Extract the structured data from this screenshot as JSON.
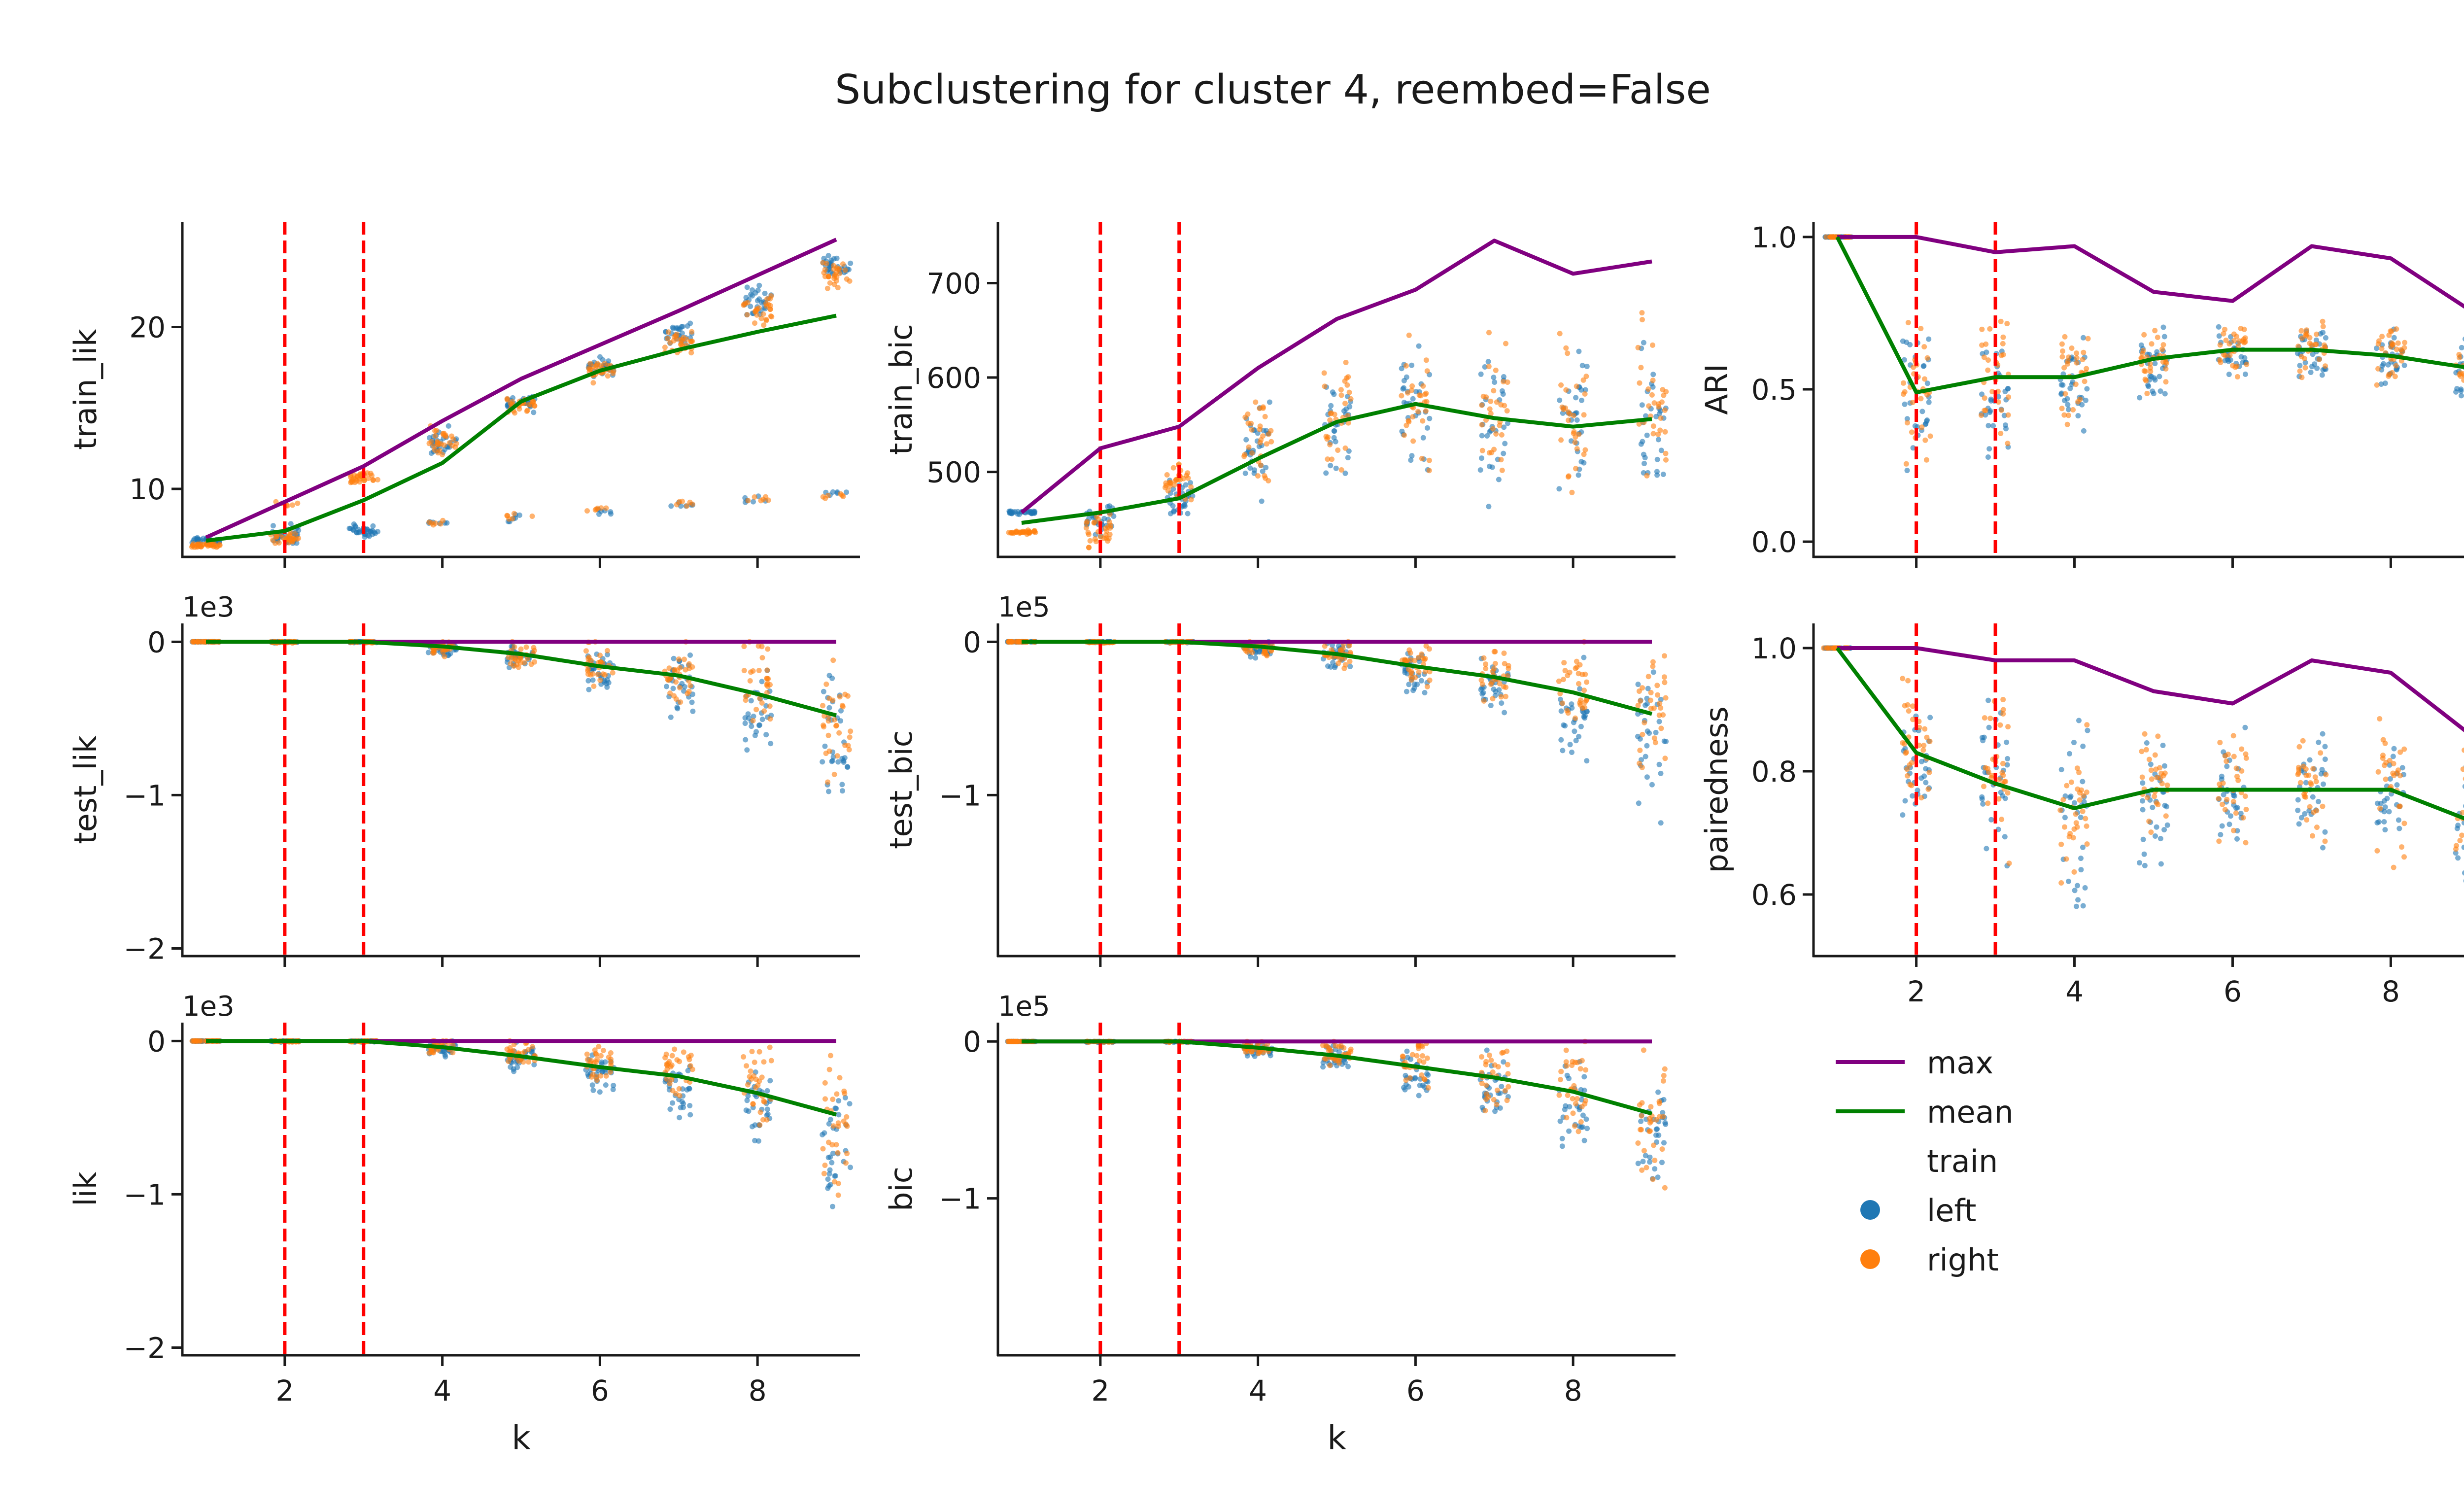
{
  "figure": {
    "title": "Subclustering for cluster 4, reembed=False",
    "colors": {
      "max": "#800080",
      "mean": "#008000",
      "left": "#1f77b4",
      "right": "#ff7f0e",
      "vline": "#ff0000"
    },
    "legend": {
      "entries": [
        "max",
        "mean"
      ],
      "subtitle": "train",
      "markers": [
        "left",
        "right"
      ]
    }
  },
  "chart_data": [
    {
      "id": "train_lik",
      "type": "scatter",
      "ylabel": "train_lik",
      "xlabel": "",
      "xlim": [
        0.7,
        9.3
      ],
      "ylim": [
        5.8,
        26.5
      ],
      "yticks": [
        10,
        20
      ],
      "ytick_labels": [
        "10",
        "20"
      ],
      "xticks": [
        2,
        4,
        6,
        8
      ],
      "xtick_labels": [
        "",
        "",
        "",
        ""
      ],
      "offset": "",
      "vlines": [
        2,
        3
      ],
      "x": [
        1,
        2,
        3,
        4,
        5,
        6,
        7,
        8,
        9
      ],
      "series": [
        {
          "name": "max",
          "values": [
            7.0,
            9.2,
            11.4,
            14.2,
            16.8,
            18.9,
            21.0,
            23.2,
            25.4
          ]
        },
        {
          "name": "mean",
          "values": [
            6.8,
            7.4,
            9.3,
            11.6,
            15.4,
            17.3,
            18.6,
            19.7,
            20.7
          ]
        }
      ],
      "scatter": {
        "left_main": [
          6.8,
          7.0,
          7.4,
          13.0,
          15.4,
          17.6,
          19.5,
          21.6,
          23.8
        ],
        "left_low": [
          6.9,
          7.6,
          7.5,
          7.9,
          8.2,
          8.6,
          9.0,
          9.3,
          9.8
        ],
        "right_main": [
          6.5,
          7.0,
          10.6,
          13.0,
          15.2,
          17.3,
          19.0,
          21.0,
          23.2
        ],
        "right_low": [
          6.6,
          9.1,
          10.9,
          7.9,
          8.3,
          8.7,
          9.1,
          9.4,
          9.6
        ],
        "spread_main": [
          0.2,
          0.6,
          0.5,
          1.2,
          0.8,
          0.9,
          1.0,
          1.3,
          1.2
        ],
        "spread_low": [
          0.15,
          0.3,
          0.15,
          0.2,
          0.3,
          0.3,
          0.3,
          0.3,
          0.3
        ]
      }
    },
    {
      "id": "train_bic",
      "type": "scatter",
      "ylabel": "train_bic",
      "xlabel": "",
      "xlim": [
        0.7,
        9.3
      ],
      "ylim": [
        410,
        765
      ],
      "yticks": [
        500,
        600,
        700
      ],
      "ytick_labels": [
        "500",
        "600",
        "700"
      ],
      "xticks": [
        2,
        4,
        6,
        8
      ],
      "xtick_labels": [
        "",
        "",
        "",
        ""
      ],
      "offset": "",
      "vlines": [
        2,
        3
      ],
      "x": [
        1,
        2,
        3,
        4,
        5,
        6,
        7,
        8,
        9
      ],
      "series": [
        {
          "name": "max",
          "values": [
            457,
            525,
            548,
            610,
            662,
            693,
            745,
            710,
            723
          ]
        },
        {
          "name": "mean",
          "values": [
            446,
            457,
            472,
            514,
            553,
            572,
            557,
            548,
            556
          ]
        }
      ],
      "scatter": {
        "left_center": [
          457,
          452,
          470,
          520,
          550,
          570,
          550,
          545,
          555
        ],
        "right_center": [
          436,
          440,
          490,
          540,
          560,
          580,
          570,
          565,
          570
        ],
        "spread": [
          3,
          25,
          25,
          80,
          80,
          90,
          110,
          115,
          130
        ]
      }
    },
    {
      "id": "ARI",
      "type": "scatter",
      "ylabel": "ARI",
      "xlabel": "",
      "xlim": [
        0.7,
        9.3
      ],
      "ylim": [
        -0.05,
        1.05
      ],
      "yticks": [
        0.0,
        0.5,
        1.0
      ],
      "ytick_labels": [
        "0.0",
        "0.5",
        "1.0"
      ],
      "xticks": [
        2,
        4,
        6,
        8
      ],
      "xtick_labels": [
        "",
        "",
        "",
        ""
      ],
      "offset": "",
      "vlines": [
        2,
        3
      ],
      "x": [
        1,
        2,
        3,
        4,
        5,
        6,
        7,
        8,
        9
      ],
      "series": [
        {
          "name": "max",
          "values": [
            1.0,
            1.0,
            0.95,
            0.97,
            0.82,
            0.79,
            0.97,
            0.93,
            0.76
          ]
        },
        {
          "name": "mean",
          "values": [
            1.0,
            0.49,
            0.54,
            0.54,
            0.6,
            0.63,
            0.63,
            0.61,
            0.57
          ]
        }
      ],
      "scatter": {
        "left_center": [
          1.0,
          0.48,
          0.5,
          0.52,
          0.58,
          0.62,
          0.62,
          0.6,
          0.56
        ],
        "right_center": [
          1.0,
          0.5,
          0.56,
          0.56,
          0.6,
          0.64,
          0.64,
          0.62,
          0.58
        ],
        "spread": [
          0.0,
          0.35,
          0.3,
          0.22,
          0.15,
          0.12,
          0.14,
          0.13,
          0.12
        ]
      }
    },
    {
      "id": "test_lik",
      "type": "scatter",
      "ylabel": "test_lik",
      "xlabel": "",
      "xlim": [
        0.7,
        9.3
      ],
      "ylim": [
        -2.05,
        0.12
      ],
      "yticks": [
        -2,
        -1,
        0
      ],
      "ytick_labels": [
        "−2",
        "−1",
        "0"
      ],
      "xticks": [
        2,
        4,
        6,
        8
      ],
      "xtick_labels": [
        "",
        "",
        "",
        ""
      ],
      "offset": "1e3",
      "vlines": [
        2,
        3
      ],
      "x": [
        1,
        2,
        3,
        4,
        5,
        6,
        7,
        8,
        9
      ],
      "series": [
        {
          "name": "max",
          "values": [
            0.0,
            0.0,
            0.0,
            0.0,
            0.0,
            0.0,
            0.0,
            0.0,
            0.0
          ]
        },
        {
          "name": "mean",
          "values": [
            0.0,
            0.0,
            0.0,
            -0.03,
            -0.08,
            -0.16,
            -0.22,
            -0.34,
            -0.48
          ]
        }
      ],
      "scatter": {
        "left_center": [
          0.0,
          0.0,
          0.0,
          -0.05,
          -0.1,
          -0.2,
          -0.3,
          -0.45,
          -0.65
        ],
        "right_center": [
          0.0,
          0.0,
          0.0,
          -0.04,
          -0.08,
          -0.14,
          -0.22,
          -0.3,
          -0.5
        ],
        "spread": [
          0.0,
          0.01,
          0.01,
          0.07,
          0.12,
          0.2,
          0.28,
          0.4,
          0.6
        ]
      }
    },
    {
      "id": "test_bic",
      "type": "scatter",
      "ylabel": "test_bic",
      "xlabel": "",
      "xlim": [
        0.7,
        9.3
      ],
      "ylim": [
        -2.05,
        0.12
      ],
      "yticks": [
        -1,
        0
      ],
      "ytick_labels": [
        "−1",
        "0"
      ],
      "xticks": [
        2,
        4,
        6,
        8
      ],
      "xtick_labels": [
        "",
        "",
        "",
        ""
      ],
      "offset": "1e5",
      "vlines": [
        2,
        3
      ],
      "x": [
        1,
        2,
        3,
        4,
        5,
        6,
        7,
        8,
        9
      ],
      "series": [
        {
          "name": "max",
          "values": [
            0.0,
            0.0,
            0.0,
            0.0,
            0.0,
            0.0,
            0.0,
            0.0,
            0.0
          ]
        },
        {
          "name": "mean",
          "values": [
            0.0,
            0.0,
            0.0,
            -0.03,
            -0.08,
            -0.16,
            -0.23,
            -0.33,
            -0.47
          ]
        }
      ],
      "scatter": {
        "left_center": [
          0.0,
          0.0,
          0.0,
          -0.05,
          -0.1,
          -0.2,
          -0.3,
          -0.45,
          -0.65
        ],
        "right_center": [
          0.0,
          0.0,
          0.0,
          -0.04,
          -0.08,
          -0.14,
          -0.22,
          -0.3,
          -0.5
        ],
        "spread": [
          0.0,
          0.01,
          0.01,
          0.07,
          0.12,
          0.2,
          0.28,
          0.4,
          0.6
        ]
      }
    },
    {
      "id": "pairedness",
      "type": "scatter",
      "ylabel": "pairedness",
      "xlabel": "",
      "xlim": [
        0.7,
        9.3
      ],
      "ylim": [
        0.5,
        1.04
      ],
      "yticks": [
        0.6,
        0.8,
        1.0
      ],
      "ytick_labels": [
        "0.6",
        "0.8",
        "1.0"
      ],
      "xticks": [
        2,
        4,
        6,
        8
      ],
      "xtick_labels": [
        "2",
        "4",
        "6",
        "8"
      ],
      "offset": "",
      "vlines": [
        2,
        3
      ],
      "x": [
        1,
        2,
        3,
        4,
        5,
        6,
        7,
        8,
        9
      ],
      "series": [
        {
          "name": "max",
          "values": [
            1.0,
            1.0,
            0.98,
            0.98,
            0.93,
            0.91,
            0.98,
            0.96,
            0.86
          ]
        },
        {
          "name": "mean",
          "values": [
            1.0,
            0.83,
            0.78,
            0.74,
            0.77,
            0.77,
            0.77,
            0.77,
            0.72
          ]
        }
      ],
      "scatter": {
        "left_center": [
          1.0,
          0.82,
          0.76,
          0.73,
          0.76,
          0.77,
          0.77,
          0.76,
          0.71
        ],
        "right_center": [
          1.0,
          0.84,
          0.8,
          0.75,
          0.78,
          0.78,
          0.78,
          0.77,
          0.73
        ],
        "spread": [
          0.0,
          0.16,
          0.2,
          0.18,
          0.15,
          0.13,
          0.14,
          0.14,
          0.14
        ]
      }
    },
    {
      "id": "lik",
      "type": "scatter",
      "ylabel": "lik",
      "xlabel": "k",
      "xlim": [
        0.7,
        9.3
      ],
      "ylim": [
        -2.05,
        0.12
      ],
      "yticks": [
        -2,
        -1,
        0
      ],
      "ytick_labels": [
        "−2",
        "−1",
        "0"
      ],
      "xticks": [
        2,
        4,
        6,
        8
      ],
      "xtick_labels": [
        "2",
        "4",
        "6",
        "8"
      ],
      "offset": "1e3",
      "vlines": [
        2,
        3
      ],
      "x": [
        1,
        2,
        3,
        4,
        5,
        6,
        7,
        8,
        9
      ],
      "series": [
        {
          "name": "max",
          "values": [
            0.0,
            0.0,
            0.0,
            0.0,
            0.0,
            0.0,
            0.0,
            0.0,
            0.0
          ]
        },
        {
          "name": "mean",
          "values": [
            0.0,
            0.0,
            0.0,
            -0.04,
            -0.1,
            -0.17,
            -0.23,
            -0.34,
            -0.48
          ]
        }
      ],
      "scatter": {
        "left_center": [
          0.0,
          0.0,
          0.0,
          -0.05,
          -0.1,
          -0.2,
          -0.3,
          -0.45,
          -0.65
        ],
        "right_center": [
          0.0,
          0.0,
          0.0,
          -0.04,
          -0.08,
          -0.14,
          -0.22,
          -0.3,
          -0.5
        ],
        "spread": [
          0.0,
          0.01,
          0.01,
          0.07,
          0.12,
          0.2,
          0.28,
          0.4,
          0.6
        ]
      }
    },
    {
      "id": "bic",
      "type": "scatter",
      "ylabel": "bic",
      "xlabel": "k",
      "xlim": [
        0.7,
        9.3
      ],
      "ylim": [
        -2.0,
        0.12
      ],
      "yticks": [
        -1,
        0
      ],
      "ytick_labels": [
        "−1",
        "0"
      ],
      "xticks": [
        2,
        4,
        6,
        8
      ],
      "xtick_labels": [
        "2",
        "4",
        "6",
        "8"
      ],
      "offset": "1e5",
      "vlines": [
        2,
        3
      ],
      "x": [
        1,
        2,
        3,
        4,
        5,
        6,
        7,
        8,
        9
      ],
      "series": [
        {
          "name": "max",
          "values": [
            0.0,
            0.0,
            0.0,
            0.0,
            0.0,
            0.0,
            0.0,
            0.0,
            0.0
          ]
        },
        {
          "name": "mean",
          "values": [
            0.0,
            0.0,
            0.0,
            -0.04,
            -0.09,
            -0.16,
            -0.23,
            -0.32,
            -0.46
          ]
        }
      ],
      "scatter": {
        "left_center": [
          0.0,
          0.0,
          0.0,
          -0.05,
          -0.1,
          -0.2,
          -0.3,
          -0.45,
          -0.65
        ],
        "right_center": [
          0.0,
          0.0,
          0.0,
          -0.04,
          -0.08,
          -0.14,
          -0.22,
          -0.3,
          -0.5
        ],
        "spread": [
          0.0,
          0.01,
          0.01,
          0.07,
          0.12,
          0.2,
          0.28,
          0.4,
          0.6
        ]
      }
    }
  ]
}
